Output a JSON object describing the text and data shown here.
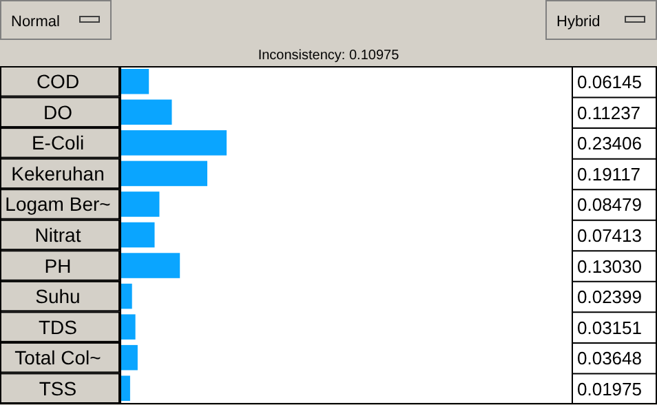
{
  "chart_data": {
    "type": "bar",
    "orientation": "horizontal",
    "categories": [
      "COD",
      "DO",
      "E-Coli",
      "Kekeruhan",
      "Logam Ber~",
      "Nitrat",
      "PH",
      "Suhu",
      "TDS",
      "Total Col~",
      "TSS"
    ],
    "values": [
      0.06145,
      0.11237,
      0.23406,
      0.19117,
      0.08479,
      0.07413,
      0.1303,
      0.02399,
      0.03151,
      0.03648,
      0.01975
    ],
    "value_labels": [
      "0.06145",
      "0.11237",
      "0.23406",
      "0.19117",
      "0.08479",
      "0.07413",
      "0.13030",
      "0.02399",
      "0.03151",
      "0.03648",
      "0.01975"
    ],
    "color": "#0aa5ff",
    "xlim": [
      0,
      1
    ],
    "tick_labels": "y",
    "annotations": [
      "Inconsistency: 0.10975",
      "Normal",
      "Hybrid"
    ]
  }
}
